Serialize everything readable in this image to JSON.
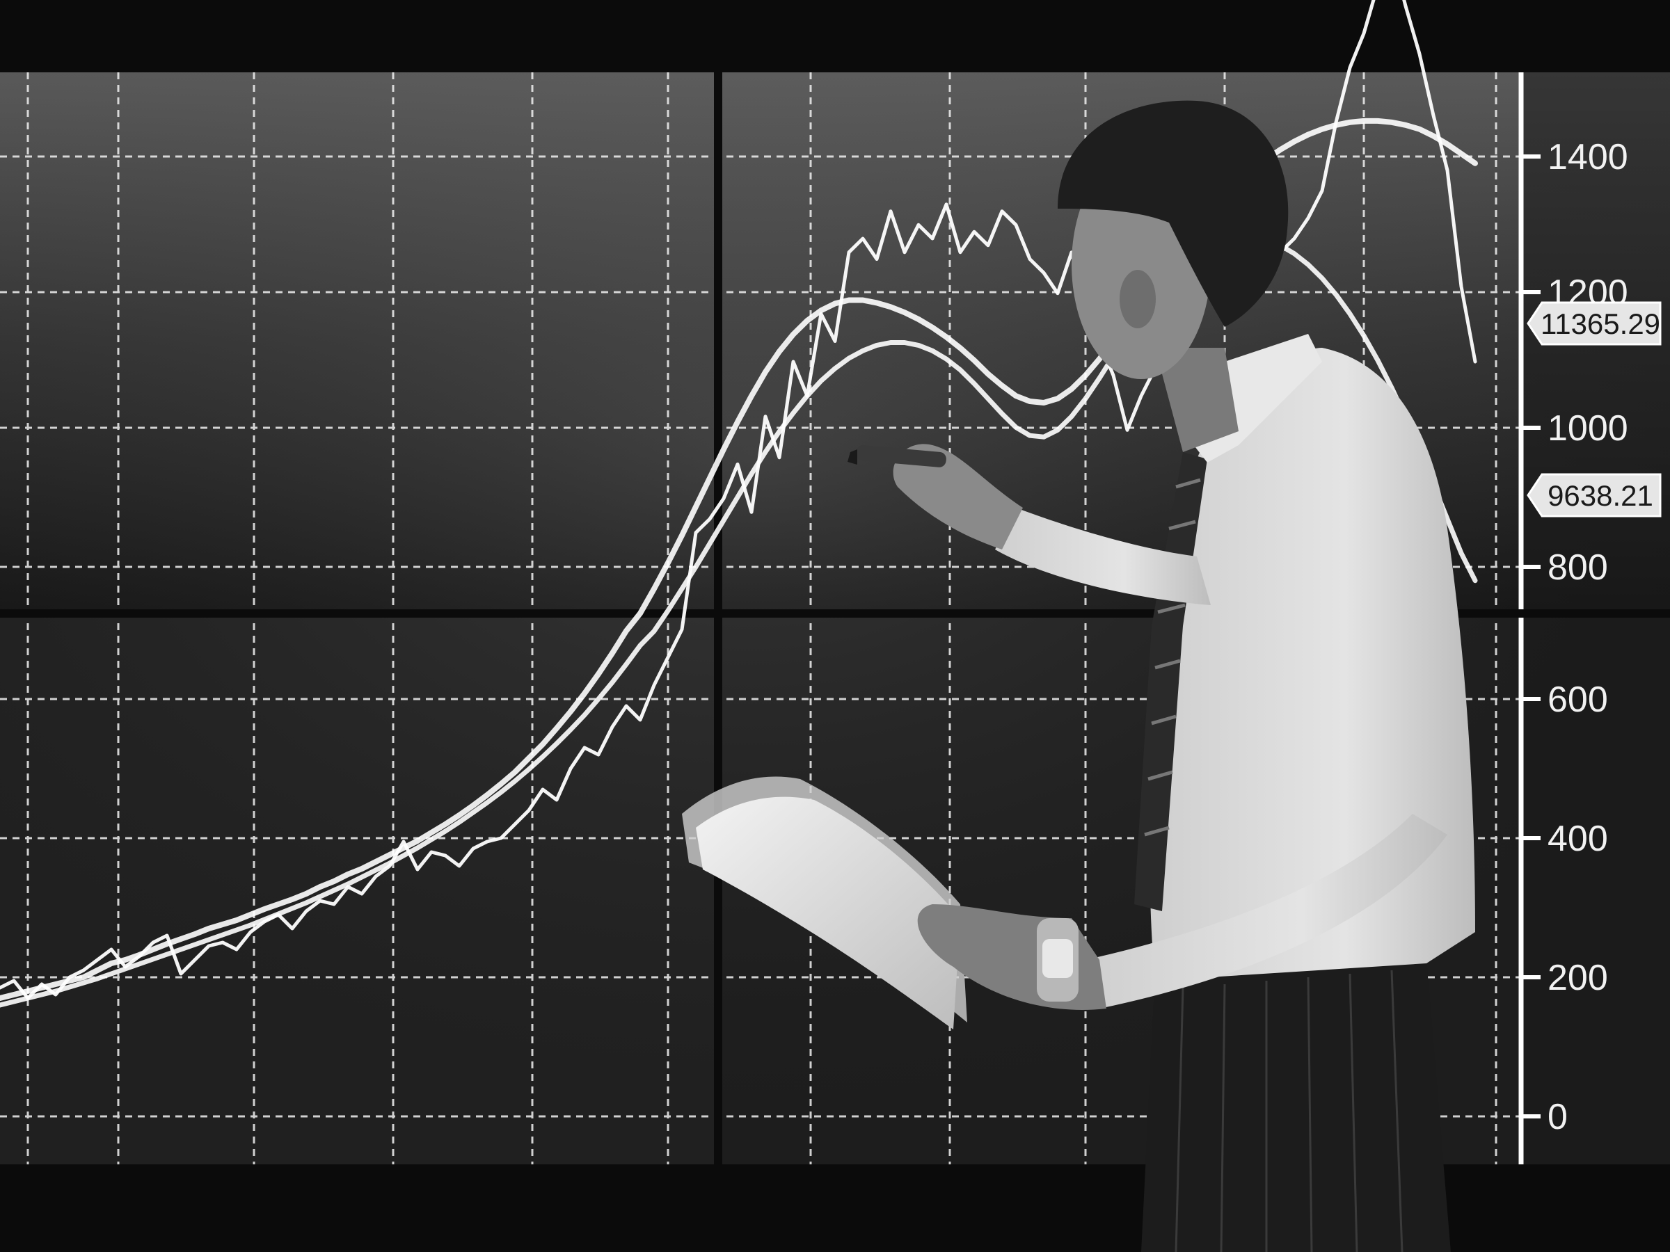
{
  "scene": {
    "description_free": true,
    "colors": {
      "background": "#0b0b0b",
      "screen_top": "#555555",
      "screen_bottom": "#1a1a1a",
      "grid": "#f0f0f0",
      "line": "#ffffff",
      "shirt": "#dcdcdc",
      "trousers": "#1c1c1c",
      "hair": "#1e1e1e",
      "skin": "#8a8a8a",
      "paper": "#e6e6e6"
    },
    "icons": [
      "person-silhouette",
      "marker-pen",
      "paper-sheets",
      "wristwatch"
    ]
  },
  "chart_data": {
    "type": "line",
    "title": "",
    "xlabel": "",
    "ylabel": "",
    "grid": true,
    "upper_axis": {
      "ticks": [
        "1400",
        "1200",
        "1000",
        "800"
      ],
      "tick_values": [
        1400,
        1200,
        1000,
        800
      ]
    },
    "lower_axis": {
      "ticks": [
        "600",
        "400",
        "200",
        "0"
      ],
      "tick_values": [
        600,
        400,
        200,
        0
      ]
    },
    "price_tags": [
      "11365.29",
      "9638.21"
    ],
    "x": [
      0,
      1,
      2,
      3,
      4,
      5,
      6,
      7,
      8,
      9,
      10,
      11,
      12,
      13,
      14,
      15,
      16,
      17,
      18,
      19,
      20,
      21,
      22,
      23,
      24,
      25,
      26,
      27,
      28,
      29,
      30,
      31,
      32,
      33,
      34,
      35,
      36,
      37,
      38,
      39,
      40,
      41,
      42,
      43,
      44,
      45,
      46,
      47,
      48,
      49,
      50,
      51,
      52,
      53,
      54,
      55,
      56,
      57,
      58,
      59,
      60,
      61,
      62,
      63,
      64,
      65,
      66,
      67,
      68,
      69,
      70,
      71,
      72,
      73,
      74,
      75,
      76,
      77,
      78,
      79,
      80,
      81,
      82,
      83,
      84,
      85,
      86,
      87,
      88,
      89,
      90,
      91,
      92,
      93,
      94,
      95,
      96,
      97,
      98,
      99,
      100,
      101,
      102,
      103,
      104,
      105,
      106
    ],
    "series": [
      {
        "values": [
          185,
          195,
          170,
          190,
          175,
          200,
          210,
          225,
          240,
          215,
          230,
          250,
          260,
          205,
          225,
          245,
          250,
          240,
          265,
          280,
          290,
          270,
          295,
          310,
          305,
          330,
          320,
          345,
          360,
          395,
          355,
          380,
          375,
          360,
          385,
          395,
          400,
          420,
          440,
          470,
          455,
          500,
          530,
          520,
          560,
          590,
          570,
          620,
          660,
          700,
          850,
          870,
          900,
          950,
          880,
          1020,
          960,
          1100,
          1050,
          1170,
          1130,
          1260,
          1280,
          1250,
          1320,
          1260,
          1300,
          1280,
          1330,
          1260,
          1290,
          1270,
          1320,
          1300,
          1250,
          1230,
          1200,
          1260,
          1180,
          1130,
          1080,
          1000,
          1050,
          1090,
          1120,
          1160,
          1180,
          1250,
          1230,
          1200,
          1240,
          1220,
          1260,
          1280,
          1310,
          1350,
          1450,
          1530,
          1580,
          1650,
          1700,
          1620,
          1550,
          1460,
          1380,
          1210,
          1100
        ]
      },
      {
        "values": [
          170,
          175,
          180,
          185,
          190,
          195,
          200,
          210,
          220,
          225,
          232,
          240,
          248,
          255,
          262,
          270,
          276,
          282,
          290,
          298,
          305,
          312,
          320,
          330,
          338,
          348,
          356,
          366,
          376,
          386,
          396,
          408,
          420,
          433,
          447,
          462,
          478,
          495,
          515,
          535,
          558,
          582,
          608,
          636,
          666,
          698,
          732,
          768,
          806,
          846,
          888,
          930,
          972,
          1012,
          1050,
          1085,
          1115,
          1140,
          1160,
          1175,
          1185,
          1190,
          1190,
          1186,
          1180,
          1172,
          1162,
          1150,
          1136,
          1120,
          1102,
          1082,
          1065,
          1050,
          1042,
          1040,
          1046,
          1060,
          1080,
          1104,
          1130,
          1158,
          1186,
          1214,
          1242,
          1270,
          1296,
          1320,
          1342,
          1362,
          1380,
          1396,
          1410,
          1422,
          1432,
          1440,
          1446,
          1450,
          1452,
          1452,
          1450,
          1446,
          1440,
          1430,
          1418,
          1404,
          1390
        ]
      },
      {
        "values": [
          160,
          165,
          170,
          175,
          180,
          186,
          192,
          198,
          205,
          212,
          219,
          226,
          233,
          240,
          247,
          254,
          261,
          268,
          275,
          283,
          291,
          299,
          307,
          316,
          325,
          334,
          344,
          354,
          364,
          375,
          386,
          398,
          410,
          423,
          437,
          451,
          466,
          482,
          499,
          517,
          536,
          556,
          577,
          600,
          624,
          650,
          677,
          706,
          736,
          768,
          800,
          834,
          868,
          902,
          936,
          968,
          998,
          1025,
          1050,
          1072,
          1090,
          1105,
          1116,
          1124,
          1128,
          1128,
          1124,
          1116,
          1104,
          1088,
          1068,
          1046,
          1024,
          1004,
          992,
          990,
          1000,
          1020,
          1046,
          1076,
          1108,
          1140,
          1170,
          1198,
          1222,
          1242,
          1258,
          1270,
          1278,
          1282,
          1282,
          1278,
          1270,
          1258,
          1242,
          1222,
          1198,
          1170,
          1138,
          1102,
          1062,
          1018,
          970,
          920,
          870,
          820,
          780
        ]
      }
    ]
  }
}
